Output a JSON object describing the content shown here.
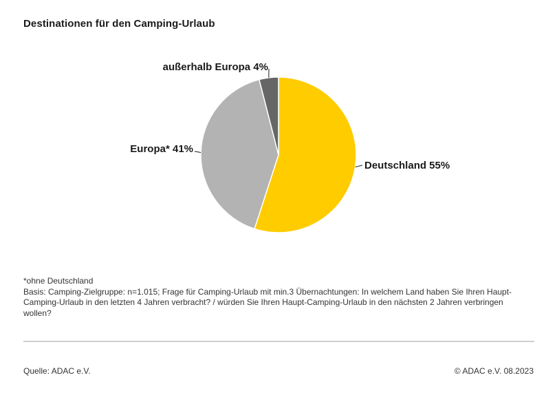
{
  "header": {
    "title": "Destinationen für den Camping-Urlaub"
  },
  "chart_data": {
    "type": "pie",
    "slices": [
      {
        "label": "Deutschland 55%",
        "value": 55,
        "color": "#ffcc00"
      },
      {
        "label": "Europa* 41%",
        "value": 41,
        "color": "#b3b3b3"
      },
      {
        "label": "außerhalb Europa 4%",
        "value": 4,
        "color": "#666666"
      }
    ],
    "start": "12 o'clock",
    "direction": "clockwise",
    "legend": "none"
  },
  "notes": {
    "footnote": "*ohne Deutschland",
    "basis": "Basis: Camping-Zielgruppe: n=1.015; Frage für Camping-Urlaub mit min.3 Übernachtungen: In welchem Land haben Sie Ihren Haupt-Camping-Urlaub in den letzten 4 Jahren verbracht? / würden Sie Ihren Haupt-Camping-Urlaub in den nächsten 2 Jahren  verbringen wollen?"
  },
  "footer": {
    "source": "Quelle: ADAC e.V.",
    "copyright": "© ADAC e.V. 08.2023"
  }
}
